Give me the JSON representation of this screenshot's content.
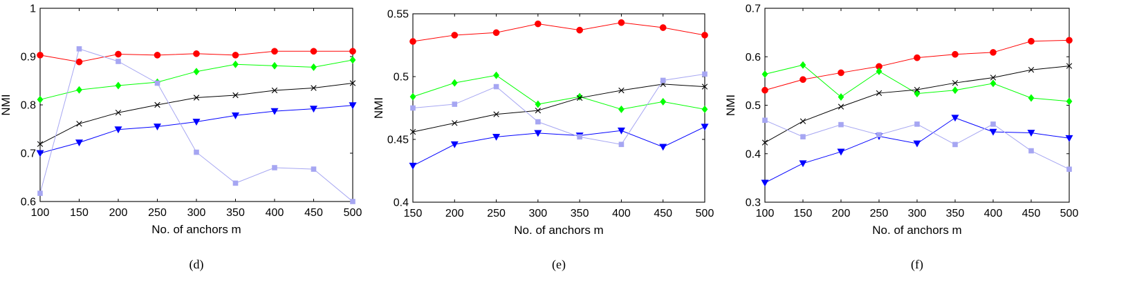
{
  "chart_data": [
    {
      "type": "line",
      "caption": "(d)",
      "xlabel": "No. of anchors m",
      "ylabel": "NMI",
      "x": [
        100,
        150,
        200,
        250,
        300,
        350,
        400,
        450,
        500
      ],
      "xlim": [
        100,
        500
      ],
      "ylim": [
        0.6,
        1.0
      ],
      "xticks": [
        "100",
        "150",
        "200",
        "250",
        "300",
        "350",
        "400",
        "450",
        "500"
      ],
      "yticks": [
        "0.6",
        "0.7",
        "0.8",
        "0.9",
        "1"
      ],
      "ytick_values": [
        0.6,
        0.7,
        0.8,
        0.9,
        1.0
      ],
      "grid": false,
      "series": [
        {
          "color": "#ff0000",
          "marker": "circle",
          "values": [
            0.903,
            0.889,
            0.905,
            0.903,
            0.906,
            0.903,
            0.911,
            0.911,
            0.911
          ]
        },
        {
          "color": "#00ff00",
          "marker": "diamond",
          "values": [
            0.811,
            0.831,
            0.84,
            0.847,
            0.869,
            0.884,
            0.881,
            0.878,
            0.893
          ]
        },
        {
          "color": "#000000",
          "marker": "x",
          "values": [
            0.719,
            0.761,
            0.784,
            0.8,
            0.815,
            0.82,
            0.83,
            0.835,
            0.845
          ]
        },
        {
          "color": "#0000ff",
          "marker": "triangle-down",
          "values": [
            0.7,
            0.722,
            0.749,
            0.755,
            0.765,
            0.778,
            0.787,
            0.792,
            0.799
          ]
        },
        {
          "color": "#a6a6f2",
          "marker": "square",
          "values": [
            0.617,
            0.916,
            0.89,
            0.845,
            0.702,
            0.638,
            0.67,
            0.667,
            0.6
          ]
        }
      ]
    },
    {
      "type": "line",
      "caption": "(e)",
      "xlabel": "No. of anchors m",
      "ylabel": "NMI",
      "x": [
        150,
        200,
        250,
        300,
        350,
        400,
        450,
        500
      ],
      "xlim": [
        150,
        500
      ],
      "ylim": [
        0.4,
        0.55
      ],
      "xticks": [
        "150",
        "200",
        "250",
        "300",
        "350",
        "400",
        "450",
        "500"
      ],
      "yticks": [
        "0.4",
        "0.45",
        "0.5",
        "0.55"
      ],
      "ytick_values": [
        0.4,
        0.45,
        0.5,
        0.55
      ],
      "grid": false,
      "series": [
        {
          "color": "#ff0000",
          "marker": "circle",
          "values": [
            0.528,
            0.533,
            0.535,
            0.542,
            0.537,
            0.543,
            0.539,
            0.533
          ]
        },
        {
          "color": "#00ff00",
          "marker": "diamond",
          "values": [
            0.484,
            0.495,
            0.501,
            0.478,
            0.484,
            0.474,
            0.48,
            0.474
          ]
        },
        {
          "color": "#000000",
          "marker": "x",
          "values": [
            0.456,
            0.463,
            0.47,
            0.473,
            0.483,
            0.489,
            0.494,
            0.492
          ]
        },
        {
          "color": "#0000ff",
          "marker": "triangle-down",
          "values": [
            0.429,
            0.446,
            0.452,
            0.455,
            0.453,
            0.457,
            0.444,
            0.46
          ]
        },
        {
          "color": "#a6a6f2",
          "marker": "square",
          "values": [
            0.475,
            0.478,
            0.492,
            0.464,
            0.452,
            0.446,
            0.497,
            0.502
          ]
        }
      ]
    },
    {
      "type": "line",
      "caption": "(f)",
      "xlabel": "No. of anchors m",
      "ylabel": "NMI",
      "x": [
        100,
        150,
        200,
        250,
        300,
        350,
        400,
        450,
        500
      ],
      "xlim": [
        100,
        500
      ],
      "ylim": [
        0.3,
        0.7
      ],
      "xticks": [
        "100",
        "150",
        "200",
        "250",
        "300",
        "350",
        "400",
        "450",
        "500"
      ],
      "yticks": [
        "0.3",
        "0.4",
        "0.5",
        "0.6",
        "0.7"
      ],
      "ytick_values": [
        0.3,
        0.4,
        0.5,
        0.6,
        0.7
      ],
      "grid": false,
      "series": [
        {
          "color": "#ff0000",
          "marker": "circle",
          "values": [
            0.531,
            0.553,
            0.567,
            0.58,
            0.598,
            0.605,
            0.609,
            0.632,
            0.634
          ]
        },
        {
          "color": "#00ff00",
          "marker": "diamond",
          "values": [
            0.564,
            0.583,
            0.517,
            0.57,
            0.524,
            0.531,
            0.545,
            0.515,
            0.508
          ]
        },
        {
          "color": "#000000",
          "marker": "x",
          "values": [
            0.423,
            0.467,
            0.497,
            0.525,
            0.532,
            0.546,
            0.557,
            0.573,
            0.581
          ]
        },
        {
          "color": "#0000ff",
          "marker": "triangle-down",
          "values": [
            0.34,
            0.38,
            0.404,
            0.436,
            0.421,
            0.474,
            0.445,
            0.443,
            0.432
          ]
        },
        {
          "color": "#a6a6f2",
          "marker": "square",
          "values": [
            0.469,
            0.435,
            0.46,
            0.439,
            0.461,
            0.419,
            0.461,
            0.406,
            0.368
          ]
        }
      ]
    }
  ]
}
